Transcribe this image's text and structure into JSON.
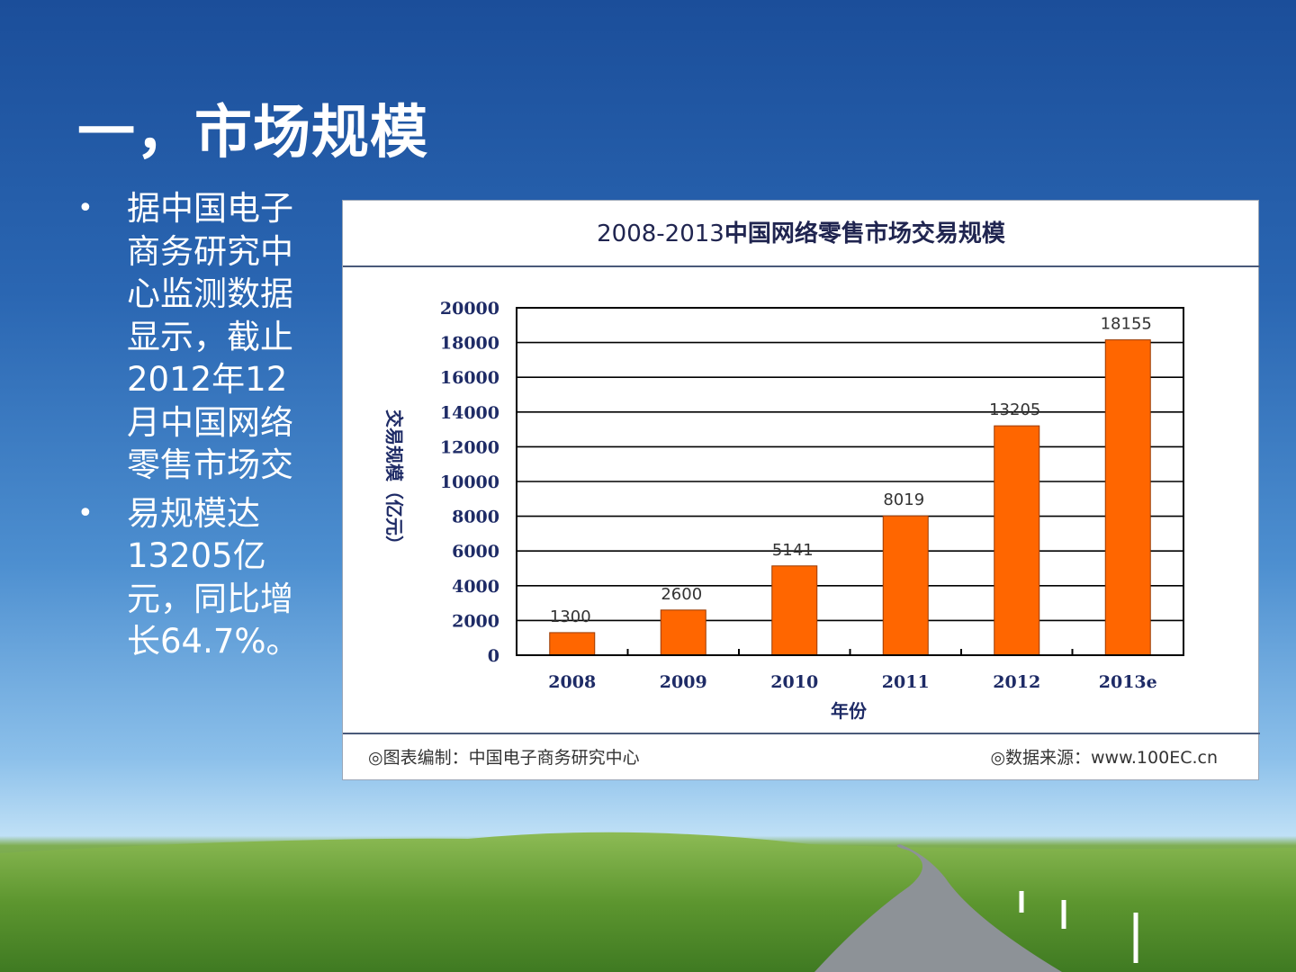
{
  "slide": {
    "title": "一，市场规模",
    "bullets": [
      "据中国电子商务研究中心监测数据显示，截止2012年12月中国网络零售市场交",
      "易规模达13205亿元，同比增长64.7%。"
    ]
  },
  "chart_footer": {
    "left": "◎图表编制：中国电子商务研究中心",
    "right": "◎数据来源：www.100EC.cn"
  },
  "colors": {
    "bar": "#ff6600",
    "bar_stroke": "#9a3a00",
    "axis_text": "#1e2b66"
  },
  "chart_data": {
    "type": "bar",
    "title_num": "2008-2013",
    "title_text": "中国网络零售市场交易规模",
    "categories": [
      "2008",
      "2009",
      "2010",
      "2011",
      "2012",
      "2013e"
    ],
    "values": [
      1300,
      2600,
      5141,
      8019,
      13205,
      18155
    ],
    "value_labels": [
      "1300",
      "2600",
      "5141",
      "8019",
      "13205",
      "18155"
    ],
    "xlabel": "年份",
    "ylabel": "交易规模（亿元）",
    "ylim": [
      0,
      20000
    ],
    "yticks": [
      "0",
      "2000",
      "4000",
      "6000",
      "8000",
      "10000",
      "12000",
      "14000",
      "16000",
      "18000",
      "20000"
    ],
    "grid": true,
    "legend": "none"
  }
}
